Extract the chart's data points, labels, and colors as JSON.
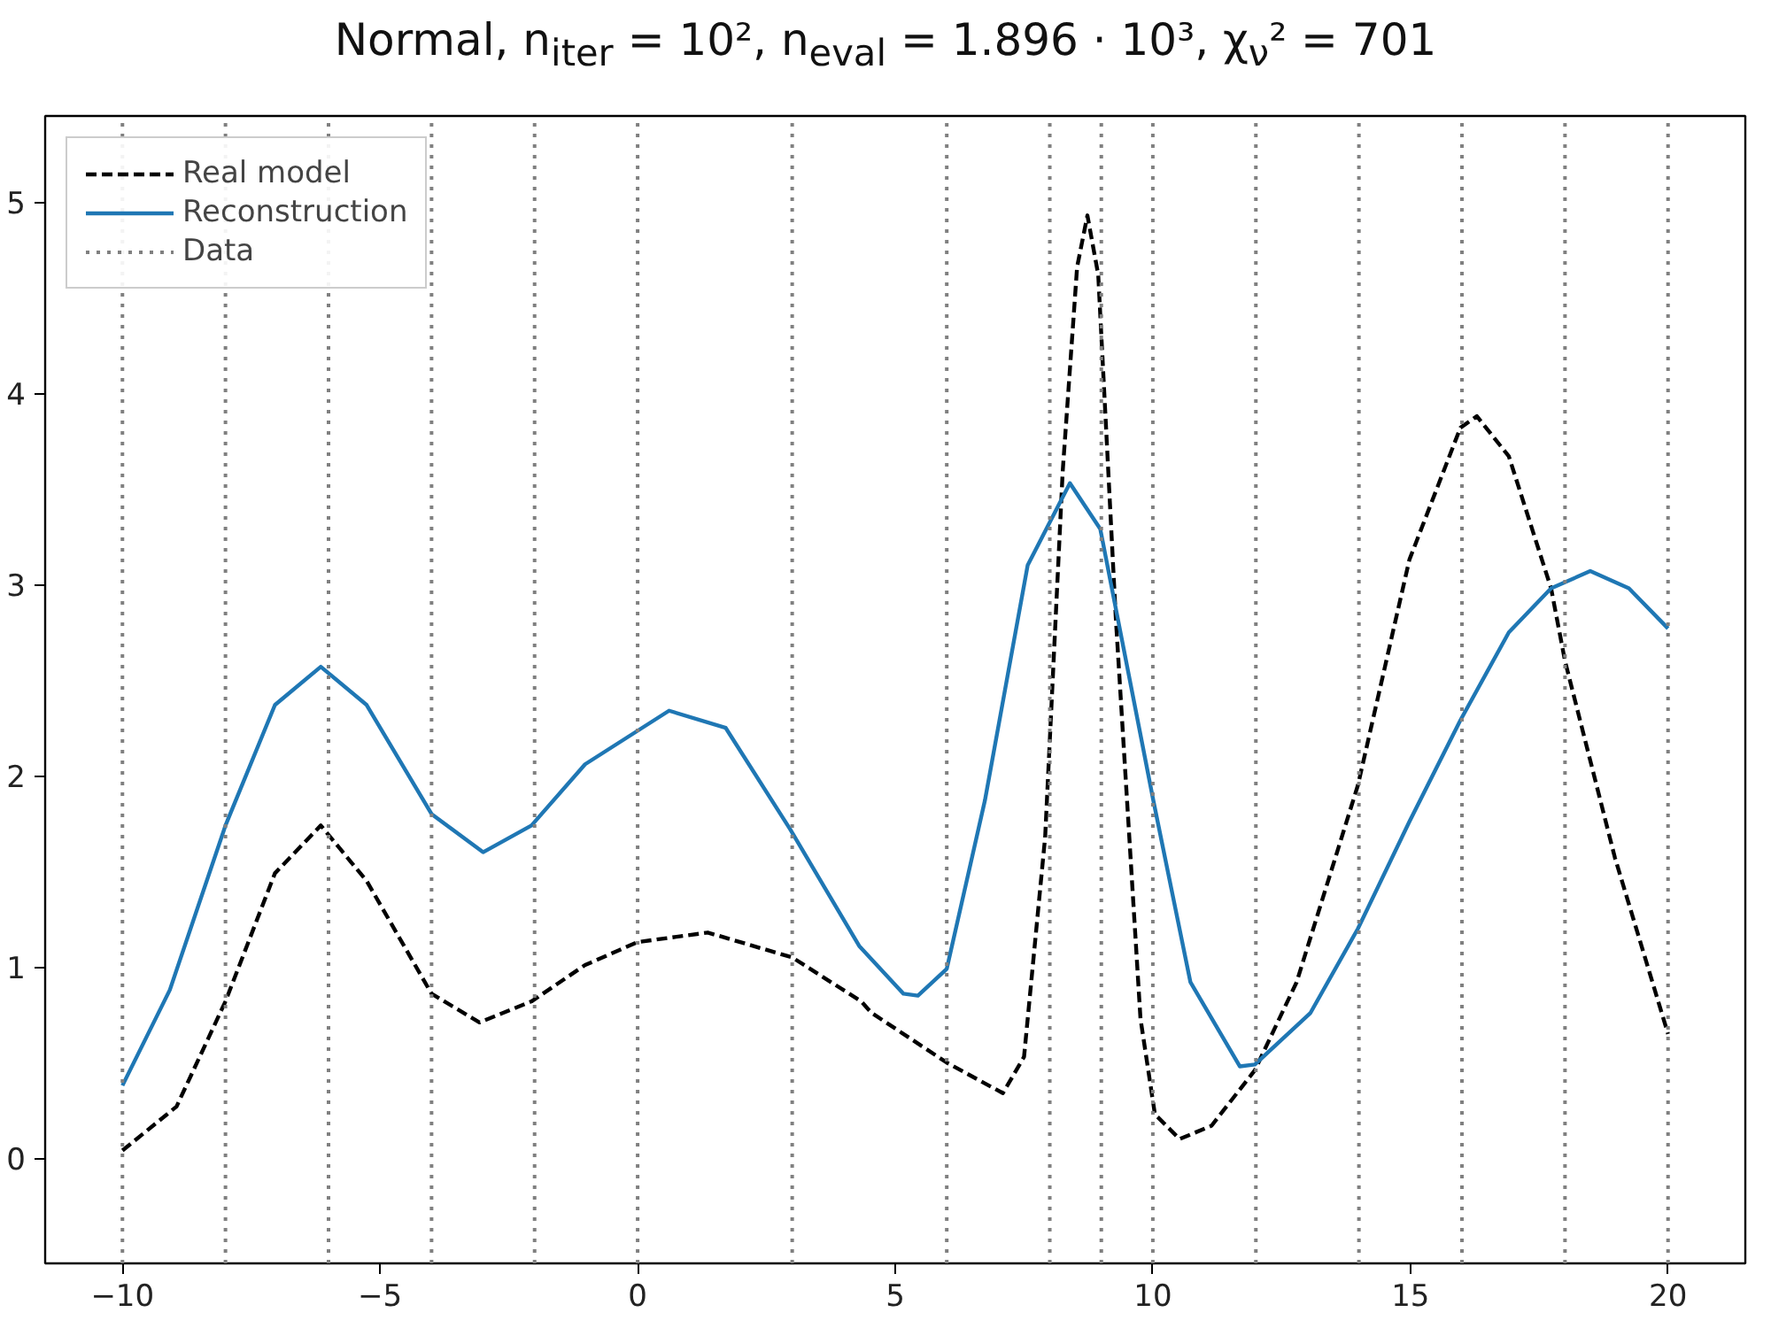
{
  "chart_data": {
    "type": "line",
    "title": "Normal, n$_{iter}$ = 10², n$_{eval}$ = 1.896 · 10³, χ$_{ν}$² = 701",
    "xlim": [
      -11.5,
      21.5
    ],
    "ylim": [
      -0.55,
      5.45
    ],
    "xticks": [
      {
        "value": -10,
        "label": "−10"
      },
      {
        "value": -5,
        "label": "−5"
      },
      0,
      5,
      10,
      15,
      20
    ],
    "yticks": [
      0,
      1,
      2,
      3,
      4,
      5
    ],
    "grid": false,
    "legend": "top left",
    "marker": "none",
    "series": [
      {
        "name": "Real model",
        "color": "#000000",
        "line_style": "dashed",
        "x": [
          -10,
          -8.95,
          -8,
          -7.04,
          -6.15,
          -5.26,
          -4,
          -3.07,
          -2.06,
          -1.02,
          0,
          1.36,
          3,
          4.34,
          4.54,
          6,
          7.09,
          7.5,
          7.91,
          8.25,
          8.53,
          8.73,
          8.94,
          9.28,
          9.76,
          10.04,
          10.52,
          11.14,
          11.98,
          12.79,
          13.98,
          14.98,
          15.97,
          16.29,
          16.91,
          17.73,
          18,
          18.97,
          20
        ],
        "values": [
          0.04,
          0.27,
          0.82,
          1.49,
          1.74,
          1.45,
          0.86,
          0.71,
          0.82,
          1.01,
          1.13,
          1.18,
          1.05,
          0.82,
          0.76,
          0.5,
          0.34,
          0.53,
          1.68,
          3.59,
          4.66,
          4.93,
          4.62,
          2.83,
          0.73,
          0.23,
          0.1,
          0.17,
          0.46,
          0.92,
          1.95,
          3.13,
          3.82,
          3.88,
          3.67,
          2.98,
          2.6,
          1.57,
          0.65
        ]
      },
      {
        "name": "Reconstruction",
        "color": "#1f77b4",
        "line_style": "solid",
        "x": [
          -10,
          -9.08,
          -8,
          -7.04,
          -6.15,
          -5.26,
          -4,
          -3,
          -2.06,
          -1.02,
          0.61,
          1.71,
          2.96,
          4.3,
          5.16,
          5.44,
          6,
          6.74,
          7.57,
          8.39,
          8.98,
          10.01,
          10.73,
          11.69,
          11.98,
          13.06,
          13.98,
          14.98,
          15.97,
          16.91,
          17.73,
          18.49,
          19.24,
          20
        ],
        "values": [
          0.38,
          0.88,
          1.74,
          2.37,
          2.57,
          2.37,
          1.8,
          1.6,
          1.74,
          2.06,
          2.34,
          2.25,
          1.72,
          1.11,
          0.86,
          0.85,
          0.99,
          1.87,
          3.1,
          3.53,
          3.29,
          1.87,
          0.92,
          0.48,
          0.49,
          0.76,
          1.2,
          1.76,
          2.29,
          2.75,
          2.98,
          3.07,
          2.98,
          2.77
        ]
      }
    ],
    "ref_lines": [
      {
        "axis": "x",
        "value": -10,
        "label": "Data",
        "color": "#808080",
        "line_style": "dotted"
      },
      {
        "axis": "x",
        "value": -8,
        "color": "#808080",
        "line_style": "dotted"
      },
      {
        "axis": "x",
        "value": -6,
        "color": "#808080",
        "line_style": "dotted"
      },
      {
        "axis": "x",
        "value": -4,
        "color": "#808080",
        "line_style": "dotted"
      },
      {
        "axis": "x",
        "value": -2,
        "color": "#808080",
        "line_style": "dotted"
      },
      {
        "axis": "x",
        "value": 0,
        "color": "#808080",
        "line_style": "dotted"
      },
      {
        "axis": "x",
        "value": 3,
        "color": "#808080",
        "line_style": "dotted"
      },
      {
        "axis": "x",
        "value": 6,
        "color": "#808080",
        "line_style": "dotted"
      },
      {
        "axis": "x",
        "value": 8,
        "color": "#808080",
        "line_style": "dotted"
      },
      {
        "axis": "x",
        "value": 9,
        "color": "#808080",
        "line_style": "dotted"
      },
      {
        "axis": "x",
        "value": 10,
        "color": "#808080",
        "line_style": "dotted"
      },
      {
        "axis": "x",
        "value": 12,
        "color": "#808080",
        "line_style": "dotted"
      },
      {
        "axis": "x",
        "value": 14,
        "color": "#808080",
        "line_style": "dotted"
      },
      {
        "axis": "x",
        "value": 16,
        "color": "#808080",
        "line_style": "dotted"
      },
      {
        "axis": "x",
        "value": 18,
        "color": "#808080",
        "line_style": "dotted"
      },
      {
        "axis": "x",
        "value": 20,
        "color": "#808080",
        "line_style": "dotted"
      }
    ]
  }
}
